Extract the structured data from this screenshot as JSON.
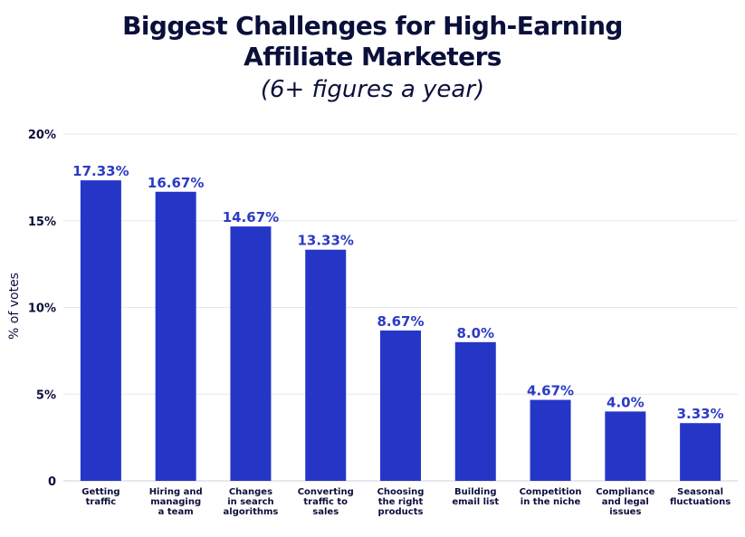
{
  "chart_data": {
    "type": "bar",
    "title": [
      "Biggest Challenges for High-Earning",
      "Affiliate Marketers"
    ],
    "subtitle": "(6+ figures a year)",
    "xlabel": "",
    "ylabel": "% of votes",
    "ylim": [
      0,
      20
    ],
    "yticks": [
      0,
      5,
      10,
      15,
      20
    ],
    "ytick_labels": [
      "0",
      "5%",
      "10%",
      "15%",
      "20%"
    ],
    "grid": true,
    "legend": "none",
    "bar_color": "#2536c7",
    "label_color": "#2b3bc4",
    "categories": [
      [
        "Getting",
        "traffic"
      ],
      [
        "Hiring and",
        "managing",
        "a team"
      ],
      [
        "Changes",
        "in search",
        "algorithms"
      ],
      [
        "Converting",
        "traffic to",
        "sales"
      ],
      [
        "Choosing",
        "the right",
        "products"
      ],
      [
        "Building",
        "email list"
      ],
      [
        "Competition",
        "in the niche"
      ],
      [
        "Compliance",
        "and legal",
        "issues"
      ],
      [
        "Seasonal",
        "fluctuations"
      ]
    ],
    "values": [
      17.33,
      16.67,
      14.67,
      13.33,
      8.67,
      8.0,
      4.67,
      4.0,
      3.33
    ],
    "value_labels": [
      "17.33%",
      "16.67%",
      "14.67%",
      "13.33%",
      "8.67%",
      "8.0%",
      "4.67%",
      "4.0%",
      "3.33%"
    ]
  }
}
